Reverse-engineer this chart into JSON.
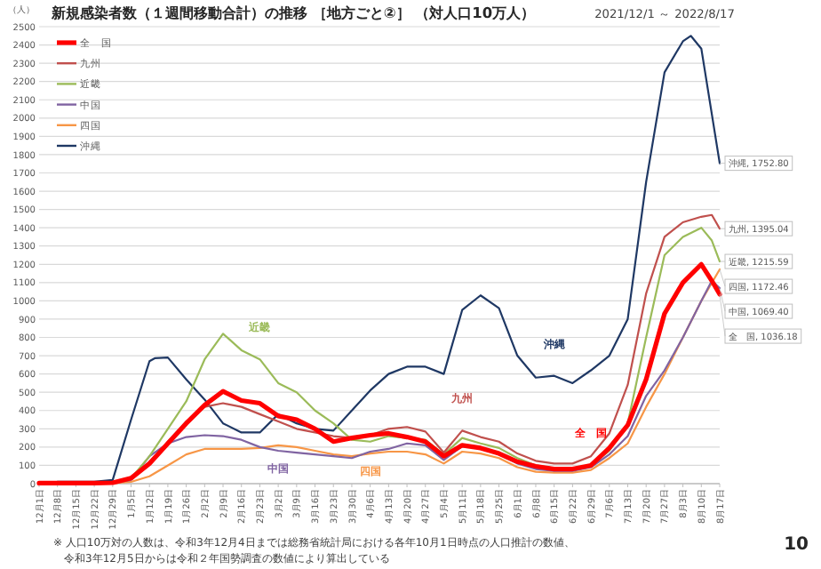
{
  "chart_data": {
    "type": "line",
    "title": "新規感染者数（１週間移動合計）の推移 ［地方ごと②］ （対人口10万人）",
    "subtitle": "2021/12/1 ～ 2022/8/17",
    "ylabel": "（人）",
    "series": [
      {
        "name": "全　国",
        "color": "#ff0000",
        "x": [
          "2021-12-01",
          "2021-12-08",
          "2021-12-15",
          "2021-12-22",
          "2021-12-29",
          "2022-01-05",
          "2022-01-12",
          "2022-01-19",
          "2022-01-26",
          "2022-02-02",
          "2022-02-09",
          "2022-02-16",
          "2022-02-23",
          "2022-03-02",
          "2022-03-09",
          "2022-03-16",
          "2022-03-23",
          "2022-03-30",
          "2022-04-06",
          "2022-04-13",
          "2022-04-20",
          "2022-04-27",
          "2022-05-04",
          "2022-05-11",
          "2022-05-18",
          "2022-05-25",
          "2022-06-01",
          "2022-06-08",
          "2022-06-15",
          "2022-06-22",
          "2022-06-29",
          "2022-07-06",
          "2022-07-13",
          "2022-07-20",
          "2022-07-27",
          "2022-08-03",
          "2022-08-10",
          "2022-08-14",
          "2022-08-17"
        ],
        "values": [
          3,
          3,
          3,
          3,
          5,
          30,
          110,
          220,
          330,
          430,
          505,
          455,
          440,
          370,
          350,
          300,
          230,
          250,
          265,
          275,
          255,
          230,
          150,
          210,
          195,
          165,
          120,
          95,
          80,
          80,
          100,
          195,
          320,
          570,
          930,
          1100,
          1200,
          1110,
          1036.18
        ]
      },
      {
        "name": "九州",
        "color": "#c0504d",
        "x": [
          "2021-12-29",
          "2022-01-05",
          "2022-01-12",
          "2022-01-19",
          "2022-01-26",
          "2022-02-02",
          "2022-02-09",
          "2022-02-16",
          "2022-02-23",
          "2022-03-02",
          "2022-03-09",
          "2022-03-16",
          "2022-03-23",
          "2022-03-30",
          "2022-04-06",
          "2022-04-13",
          "2022-04-20",
          "2022-04-27",
          "2022-05-04",
          "2022-05-11",
          "2022-05-18",
          "2022-05-25",
          "2022-06-01",
          "2022-06-08",
          "2022-06-15",
          "2022-06-22",
          "2022-06-29",
          "2022-07-06",
          "2022-07-13",
          "2022-07-20",
          "2022-07-27",
          "2022-08-03",
          "2022-08-10",
          "2022-08-14",
          "2022-08-17"
        ],
        "values": [
          5,
          30,
          110,
          230,
          340,
          420,
          440,
          420,
          380,
          340,
          300,
          280,
          260,
          250,
          265,
          300,
          310,
          285,
          170,
          290,
          255,
          230,
          165,
          125,
          110,
          110,
          150,
          275,
          540,
          1040,
          1350,
          1430,
          1460,
          1470,
          1395.04
        ]
      },
      {
        "name": "近畿",
        "color": "#9bbb59",
        "x": [
          "2021-12-29",
          "2022-01-05",
          "2022-01-12",
          "2022-01-19",
          "2022-01-26",
          "2022-02-02",
          "2022-02-09",
          "2022-02-16",
          "2022-02-23",
          "2022-03-02",
          "2022-03-09",
          "2022-03-16",
          "2022-03-23",
          "2022-03-30",
          "2022-04-06",
          "2022-04-13",
          "2022-04-20",
          "2022-04-27",
          "2022-05-04",
          "2022-05-11",
          "2022-05-18",
          "2022-05-25",
          "2022-06-01",
          "2022-06-08",
          "2022-06-15",
          "2022-06-22",
          "2022-06-29",
          "2022-07-06",
          "2022-07-13",
          "2022-07-20",
          "2022-07-27",
          "2022-08-03",
          "2022-08-10",
          "2022-08-14",
          "2022-08-17"
        ],
        "values": [
          5,
          30,
          150,
          300,
          450,
          680,
          820,
          730,
          680,
          550,
          500,
          400,
          330,
          240,
          230,
          260,
          250,
          240,
          160,
          250,
          220,
          195,
          140,
          100,
          85,
          85,
          100,
          180,
          330,
          800,
          1250,
          1350,
          1400,
          1330,
          1215.59
        ]
      },
      {
        "name": "中国",
        "color": "#8064a2",
        "x": [
          "2021-12-29",
          "2022-01-05",
          "2022-01-12",
          "2022-01-19",
          "2022-01-26",
          "2022-02-02",
          "2022-02-09",
          "2022-02-16",
          "2022-02-23",
          "2022-03-02",
          "2022-03-09",
          "2022-03-16",
          "2022-03-23",
          "2022-03-30",
          "2022-04-06",
          "2022-04-13",
          "2022-04-20",
          "2022-04-27",
          "2022-05-04",
          "2022-05-11",
          "2022-05-18",
          "2022-05-25",
          "2022-06-01",
          "2022-06-08",
          "2022-06-15",
          "2022-06-22",
          "2022-06-29",
          "2022-07-06",
          "2022-07-13",
          "2022-07-20",
          "2022-07-27",
          "2022-08-03",
          "2022-08-10",
          "2022-08-14",
          "2022-08-17"
        ],
        "values": [
          5,
          20,
          150,
          220,
          255,
          265,
          260,
          240,
          200,
          180,
          170,
          160,
          150,
          140,
          175,
          190,
          220,
          210,
          130,
          205,
          195,
          160,
          110,
          80,
          70,
          70,
          90,
          160,
          260,
          480,
          620,
          800,
          1000,
          1110,
          1069.4
        ]
      },
      {
        "name": "四国",
        "color": "#f79646",
        "x": [
          "2021-12-29",
          "2022-01-05",
          "2022-01-12",
          "2022-01-19",
          "2022-01-26",
          "2022-02-02",
          "2022-02-09",
          "2022-02-16",
          "2022-02-23",
          "2022-03-02",
          "2022-03-09",
          "2022-03-16",
          "2022-03-23",
          "2022-03-30",
          "2022-04-06",
          "2022-04-13",
          "2022-04-20",
          "2022-04-27",
          "2022-05-04",
          "2022-05-11",
          "2022-05-18",
          "2022-05-25",
          "2022-06-01",
          "2022-06-08",
          "2022-06-15",
          "2022-06-22",
          "2022-06-29",
          "2022-07-06",
          "2022-07-13",
          "2022-07-20",
          "2022-07-27",
          "2022-08-03",
          "2022-08-10",
          "2022-08-17"
        ],
        "values": [
          3,
          10,
          40,
          100,
          160,
          190,
          190,
          190,
          195,
          210,
          200,
          180,
          160,
          150,
          165,
          175,
          175,
          160,
          110,
          175,
          165,
          140,
          90,
          65,
          60,
          60,
          75,
          140,
          220,
          420,
          600,
          800,
          1000,
          1172.46
        ]
      },
      {
        "name": "沖縄",
        "color": "#1f3864",
        "x": [
          "2021-12-08",
          "2021-12-15",
          "2021-12-22",
          "2021-12-29",
          "2022-01-05",
          "2022-01-12",
          "2022-01-14",
          "2022-01-19",
          "2022-01-26",
          "2022-02-02",
          "2022-02-09",
          "2022-02-16",
          "2022-02-23",
          "2022-03-02",
          "2022-03-09",
          "2022-03-16",
          "2022-03-23",
          "2022-03-30",
          "2022-04-06",
          "2022-04-13",
          "2022-04-20",
          "2022-04-27",
          "2022-05-04",
          "2022-05-11",
          "2022-05-18",
          "2022-05-25",
          "2022-06-01",
          "2022-06-08",
          "2022-06-15",
          "2022-06-22",
          "2022-06-29",
          "2022-07-06",
          "2022-07-13",
          "2022-07-20",
          "2022-07-27",
          "2022-08-03",
          "2022-08-06",
          "2022-08-10",
          "2022-08-17"
        ],
        "values": [
          10,
          10,
          10,
          20,
          350,
          670,
          686,
          690,
          570,
          460,
          330,
          280,
          280,
          380,
          330,
          300,
          290,
          400,
          510,
          600,
          640,
          640,
          600,
          950,
          1030,
          960,
          700,
          580,
          590,
          550,
          620,
          700,
          900,
          1650,
          2250,
          2420,
          2450,
          2380,
          1752.8
        ]
      }
    ],
    "xlim": [
      "2021-12-01",
      "2022-08-17"
    ],
    "xticks": [
      {
        "value": "2021-12-01",
        "label": "12月1日"
      },
      {
        "value": "2021-12-08",
        "label": "12月8日"
      },
      {
        "value": "2021-12-15",
        "label": "12月15日"
      },
      {
        "value": "2021-12-22",
        "label": "12月22日"
      },
      {
        "value": "2021-12-29",
        "label": "12月29日"
      },
      {
        "value": "2022-01-05",
        "label": "1月5日"
      },
      {
        "value": "2022-01-12",
        "label": "1月12日"
      },
      {
        "value": "2022-01-19",
        "label": "1月19日"
      },
      {
        "value": "2022-01-26",
        "label": "1月26日"
      },
      {
        "value": "2022-02-02",
        "label": "2月2日"
      },
      {
        "value": "2022-02-09",
        "label": "2月9日"
      },
      {
        "value": "2022-02-16",
        "label": "2月16日"
      },
      {
        "value": "2022-02-23",
        "label": "2月23日"
      },
      {
        "value": "2022-03-02",
        "label": "3月2日"
      },
      {
        "value": "2022-03-09",
        "label": "3月9日"
      },
      {
        "value": "2022-03-16",
        "label": "3月16日"
      },
      {
        "value": "2022-03-23",
        "label": "3月23日"
      },
      {
        "value": "2022-03-30",
        "label": "3月30日"
      },
      {
        "value": "2022-04-06",
        "label": "4月6日"
      },
      {
        "value": "2022-04-13",
        "label": "4月13日"
      },
      {
        "value": "2022-04-20",
        "label": "4月20日"
      },
      {
        "value": "2022-04-27",
        "label": "4月27日"
      },
      {
        "value": "2022-05-04",
        "label": "5月4日"
      },
      {
        "value": "2022-05-11",
        "label": "5月11日"
      },
      {
        "value": "2022-05-18",
        "label": "5月18日"
      },
      {
        "value": "2022-05-25",
        "label": "5月25日"
      },
      {
        "value": "2022-06-01",
        "label": "6月1日"
      },
      {
        "value": "2022-06-08",
        "label": "6月8日"
      },
      {
        "value": "2022-06-15",
        "label": "6月15日"
      },
      {
        "value": "2022-06-22",
        "label": "6月22日"
      },
      {
        "value": "2022-06-29",
        "label": "6月29日"
      },
      {
        "value": "2022-07-06",
        "label": "7月6日"
      },
      {
        "value": "2022-07-13",
        "label": "7月13日"
      },
      {
        "value": "2022-07-20",
        "label": "7月20日"
      },
      {
        "value": "2022-07-27",
        "label": "7月27日"
      },
      {
        "value": "2022-08-03",
        "label": "8月3日"
      },
      {
        "value": "2022-08-10",
        "label": "8月10日"
      },
      {
        "value": "2022-08-17",
        "label": "8月17日"
      }
    ],
    "ylim": [
      0,
      2500
    ],
    "yticks": [
      0,
      100,
      200,
      300,
      400,
      500,
      600,
      700,
      800,
      900,
      1000,
      1100,
      1200,
      1300,
      1400,
      1500,
      1600,
      1700,
      1800,
      1900,
      2000,
      2100,
      2200,
      2300,
      2400,
      2500
    ],
    "grid": "y",
    "legend": "top left",
    "marker": "none",
    "line_style": "solid",
    "annotations": [
      {
        "text": "近畿",
        "x": "2022-02-23",
        "y": 680
      },
      {
        "text": "中国",
        "x": "2022-03-02",
        "y": 180
      },
      {
        "text": "四国",
        "x": "2022-04-06",
        "y": 165
      },
      {
        "text": "九州",
        "x": "2022-05-11",
        "y": 290
      },
      {
        "text": "沖縄",
        "x": "2022-06-15",
        "y": 590
      },
      {
        "text": "全　国",
        "x": "2022-06-29",
        "y": 100
      },
      {
        "text": "沖縄, 1752.80",
        "x": "2022-08-17",
        "y": 1752.8
      },
      {
        "text": "九州, 1395.04",
        "x": "2022-08-17",
        "y": 1395.04
      },
      {
        "text": "近畿, 1215.59",
        "x": "2022-08-17",
        "y": 1215.59
      },
      {
        "text": "四国, 1172.46",
        "x": "2022-08-17",
        "y": 1172.46
      },
      {
        "text": "中国, 1069.40",
        "x": "2022-08-17",
        "y": 1069.4
      },
      {
        "text": "全　国, 1036.18",
        "x": "2022-08-17",
        "y": 1036.18
      },
      "※ 人口10万対の人数は、令和3年12月4日までは総務省統計局における各年10月1日時点の人口推計の数値、",
      "令和3年12月5日からは令和２年国勢調査の数値により算出している",
      "10"
    ]
  }
}
